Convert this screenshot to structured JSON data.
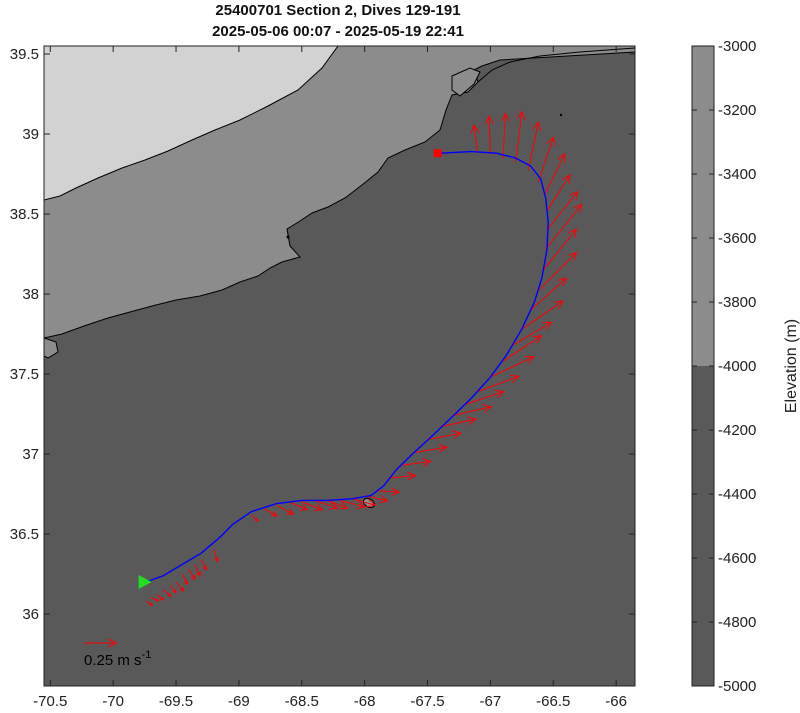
{
  "chart_data": {
    "type": "map",
    "title": "25400701 Section 2, Dives 129-191",
    "subtitle": "2025-05-06 00:07 - 2025-05-19 22:41",
    "xlim": [
      -70.55,
      -65.85
    ],
    "ylim": [
      35.55,
      39.55
    ],
    "xticks": [
      "-70.5",
      "-70",
      "-69.5",
      "-69",
      "-68.5",
      "-68",
      "-67.5",
      "-67",
      "-66.5",
      "-66"
    ],
    "xtick_values": [
      -70.5,
      -70,
      -69.5,
      -69,
      -68.5,
      -68,
      -67.5,
      -67,
      -66.5,
      -66
    ],
    "yticks": [
      "36",
      "36.5",
      "37",
      "37.5",
      "38",
      "38.5",
      "39",
      "39.5"
    ],
    "ytick_values": [
      36,
      36.5,
      37,
      37.5,
      38,
      38.5,
      39,
      39.5
    ],
    "colorbar": {
      "label": "Elevation (m)",
      "range": [
        -5000,
        -3000
      ],
      "ticks": [
        "-3000",
        "-3200",
        "-3400",
        "-3600",
        "-3800",
        "-4000",
        "-4200",
        "-4400",
        "-4600",
        "-4800",
        "-5000"
      ],
      "tick_values": [
        -3000,
        -3200,
        -3400,
        -3600,
        -3800,
        -4000,
        -4200,
        -4400,
        -4600,
        -4800,
        -5000
      ],
      "bands": [
        {
          "from": -5000,
          "to": -4000,
          "color": "#595959"
        },
        {
          "from": -4000,
          "to": -3000,
          "color": "#8c8c8c"
        }
      ]
    },
    "bathymetry_zones": [
      {
        "name": "deep",
        "color": "#595959"
      },
      {
        "name": "mid",
        "color": "#8c8c8c"
      },
      {
        "name": "shallow",
        "color": "#d2d2d2"
      }
    ],
    "track": {
      "color": "#0000ff",
      "lon": [
        -69.74,
        -69.6,
        -69.45,
        -69.3,
        -69.15,
        -69.05,
        -68.9,
        -68.7,
        -68.5,
        -68.3,
        -68.1,
        -67.95,
        -67.85,
        -67.75,
        -67.62,
        -67.48,
        -67.32,
        -67.15,
        -67.0,
        -66.87,
        -66.75,
        -66.65,
        -66.59,
        -66.55,
        -66.54,
        -66.56,
        -66.6,
        -66.68,
        -66.8,
        -66.95,
        -67.15,
        -67.4
      ],
      "lat": [
        36.2,
        36.24,
        36.31,
        36.38,
        36.48,
        36.56,
        36.64,
        36.69,
        36.71,
        36.71,
        36.72,
        36.74,
        36.8,
        36.9,
        37.0,
        37.1,
        37.22,
        37.35,
        37.48,
        37.62,
        37.78,
        37.95,
        38.1,
        38.28,
        38.45,
        38.6,
        38.72,
        38.8,
        38.85,
        38.88,
        38.89,
        38.88
      ]
    },
    "start_marker": {
      "lon": -69.75,
      "lat": 36.2,
      "color": "#22dd22"
    },
    "end_marker": {
      "lon": -67.42,
      "lat": 38.88,
      "color": "#ff0000"
    },
    "current_vectors": {
      "color": "#ff0000",
      "scale_label": "0.25 m s",
      "scale_label_exp": "-1",
      "vectors": [
        {
          "lon": -69.74,
          "lat": 36.08,
          "u": 0.05,
          "v": -0.03
        },
        {
          "lon": -69.7,
          "lat": 36.1,
          "u": 0.06,
          "v": -0.02
        },
        {
          "lon": -69.65,
          "lat": 36.12,
          "u": 0.05,
          "v": -0.04
        },
        {
          "lon": -69.6,
          "lat": 36.15,
          "u": 0.06,
          "v": -0.05
        },
        {
          "lon": -69.55,
          "lat": 36.18,
          "u": 0.05,
          "v": -0.06
        },
        {
          "lon": -69.5,
          "lat": 36.2,
          "u": 0.06,
          "v": -0.07
        },
        {
          "lon": -69.45,
          "lat": 36.25,
          "u": 0.04,
          "v": -0.08
        },
        {
          "lon": -69.4,
          "lat": 36.28,
          "u": 0.05,
          "v": -0.08
        },
        {
          "lon": -69.35,
          "lat": 36.31,
          "u": 0.04,
          "v": -0.09
        },
        {
          "lon": -69.3,
          "lat": 36.34,
          "u": 0.04,
          "v": -0.08
        },
        {
          "lon": -69.2,
          "lat": 36.4,
          "u": 0.03,
          "v": -0.09
        },
        {
          "lon": -68.9,
          "lat": 36.62,
          "u": 0.05,
          "v": -0.05
        },
        {
          "lon": -68.8,
          "lat": 36.66,
          "u": 0.1,
          "v": -0.06
        },
        {
          "lon": -68.7,
          "lat": 36.68,
          "u": 0.13,
          "v": -0.07
        },
        {
          "lon": -68.6,
          "lat": 36.7,
          "u": 0.14,
          "v": -0.06
        },
        {
          "lon": -68.5,
          "lat": 36.7,
          "u": 0.16,
          "v": -0.06
        },
        {
          "lon": -68.4,
          "lat": 36.71,
          "u": 0.18,
          "v": -0.06
        },
        {
          "lon": -68.3,
          "lat": 36.71,
          "u": 0.16,
          "v": -0.06
        },
        {
          "lon": -68.2,
          "lat": 36.71,
          "u": 0.2,
          "v": -0.05
        },
        {
          "lon": -68.1,
          "lat": 36.72,
          "u": 0.18,
          "v": -0.05
        },
        {
          "lon": -68.0,
          "lat": 36.74,
          "u": 0.18,
          "v": -0.04
        },
        {
          "lon": -67.9,
          "lat": 36.77,
          "u": 0.17,
          "v": -0.01
        },
        {
          "lon": -67.8,
          "lat": 36.85,
          "u": 0.2,
          "v": 0.02
        },
        {
          "lon": -67.7,
          "lat": 36.93,
          "u": 0.22,
          "v": 0.03
        },
        {
          "lon": -67.6,
          "lat": 37.01,
          "u": 0.25,
          "v": 0.04
        },
        {
          "lon": -67.5,
          "lat": 37.09,
          "u": 0.26,
          "v": 0.05
        },
        {
          "lon": -67.4,
          "lat": 37.17,
          "u": 0.28,
          "v": 0.06
        },
        {
          "lon": -67.3,
          "lat": 37.24,
          "u": 0.3,
          "v": 0.07
        },
        {
          "lon": -67.2,
          "lat": 37.31,
          "u": 0.3,
          "v": 0.1
        },
        {
          "lon": -67.1,
          "lat": 37.39,
          "u": 0.32,
          "v": 0.12
        },
        {
          "lon": -67.0,
          "lat": 37.48,
          "u": 0.34,
          "v": 0.16
        },
        {
          "lon": -66.9,
          "lat": 37.58,
          "u": 0.3,
          "v": 0.2
        },
        {
          "lon": -66.82,
          "lat": 37.68,
          "u": 0.3,
          "v": 0.18
        },
        {
          "lon": -66.75,
          "lat": 37.78,
          "u": 0.32,
          "v": 0.22
        },
        {
          "lon": -66.68,
          "lat": 37.9,
          "u": 0.28,
          "v": 0.25
        },
        {
          "lon": -66.62,
          "lat": 38.02,
          "u": 0.3,
          "v": 0.3
        },
        {
          "lon": -66.58,
          "lat": 38.15,
          "u": 0.26,
          "v": 0.32
        },
        {
          "lon": -66.56,
          "lat": 38.28,
          "u": 0.28,
          "v": 0.35
        },
        {
          "lon": -66.55,
          "lat": 38.4,
          "u": 0.24,
          "v": 0.3
        },
        {
          "lon": -66.55,
          "lat": 38.52,
          "u": 0.18,
          "v": 0.28
        },
        {
          "lon": -66.57,
          "lat": 38.62,
          "u": 0.16,
          "v": 0.32
        },
        {
          "lon": -66.62,
          "lat": 38.7,
          "u": 0.12,
          "v": 0.35
        },
        {
          "lon": -66.7,
          "lat": 38.77,
          "u": 0.08,
          "v": 0.38
        },
        {
          "lon": -66.8,
          "lat": 38.82,
          "u": 0.05,
          "v": 0.4
        },
        {
          "lon": -66.9,
          "lat": 38.85,
          "u": 0.02,
          "v": 0.35
        },
        {
          "lon": -67.0,
          "lat": 38.87,
          "u": -0.01,
          "v": 0.3
        },
        {
          "lon": -67.1,
          "lat": 38.88,
          "u": -0.03,
          "v": 0.22
        }
      ]
    }
  }
}
